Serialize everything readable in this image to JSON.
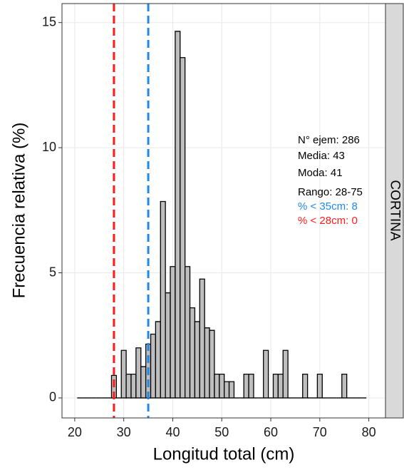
{
  "chart_data": {
    "type": "histogram",
    "xlabel": "Longitud total (cm)",
    "ylabel": "Frecuencia relativa (%)",
    "facet": "CORTINA",
    "bins": [
      20.5,
      21.5,
      22.5,
      23.5,
      24.5,
      25.5,
      26.5,
      27.5,
      28.5,
      29.5,
      30.5,
      31.5,
      32.5,
      33.5,
      34.5,
      35.5,
      36.5,
      37.5,
      38.5,
      39.5,
      40.5,
      41.5,
      42.5,
      43.5,
      44.5,
      45.5,
      46.5,
      47.5,
      48.5,
      49.5,
      50.5,
      51.5,
      52.5,
      53.5,
      54.5,
      55.5,
      56.5,
      57.5,
      58.5,
      59.5,
      60.5,
      61.5,
      62.5,
      63.5,
      64.5,
      65.5,
      66.5,
      67.5,
      68.5,
      69.5,
      70.5,
      71.5,
      72.5,
      73.5,
      74.5,
      75.5,
      76.5,
      77.5,
      78.5,
      79.5
    ],
    "values": [
      0,
      0,
      0,
      0,
      0,
      0,
      0,
      0.9,
      0,
      1.9,
      0.95,
      0.95,
      2.0,
      1.25,
      2.15,
      2.55,
      3.05,
      7.85,
      4.2,
      5.25,
      14.65,
      13.6,
      5.25,
      3.6,
      3.05,
      4.75,
      2.8,
      2.7,
      0.95,
      0.95,
      0.65,
      0.65,
      0,
      0,
      0.95,
      0.95,
      0,
      0,
      1.9,
      0,
      0.95,
      0.95,
      1.9,
      0,
      0,
      0,
      0.95,
      0,
      0,
      0.95,
      0,
      0,
      0,
      0,
      0.95,
      0,
      0,
      0,
      0
    ],
    "color": "#bebebe",
    "xlim": [
      17.4,
      83.4
    ],
    "ylim": [
      -0.8,
      15.76
    ],
    "xticks": [
      20,
      30,
      40,
      50,
      60,
      70,
      80
    ],
    "yticks": [
      0,
      5,
      10,
      15
    ],
    "grid": true,
    "vlines": [
      {
        "value": 28,
        "color": "#ff1a1a"
      },
      {
        "value": 35,
        "color": "#1e88e5"
      }
    ],
    "annotations": [
      {
        "text": "N° ejem:  286",
        "color": "#000000"
      },
      {
        "text": "Media:  43",
        "color": "#000000"
      },
      {
        "text": "Moda:   41",
        "color": "#000000"
      },
      {
        "text": "Rango:  28-75",
        "color": "#000000"
      },
      {
        "text": "% < 35cm:  8",
        "color": "#1e88e5"
      },
      {
        "text": "% < 28cm:  0",
        "color": "#ff1a1a"
      }
    ]
  }
}
